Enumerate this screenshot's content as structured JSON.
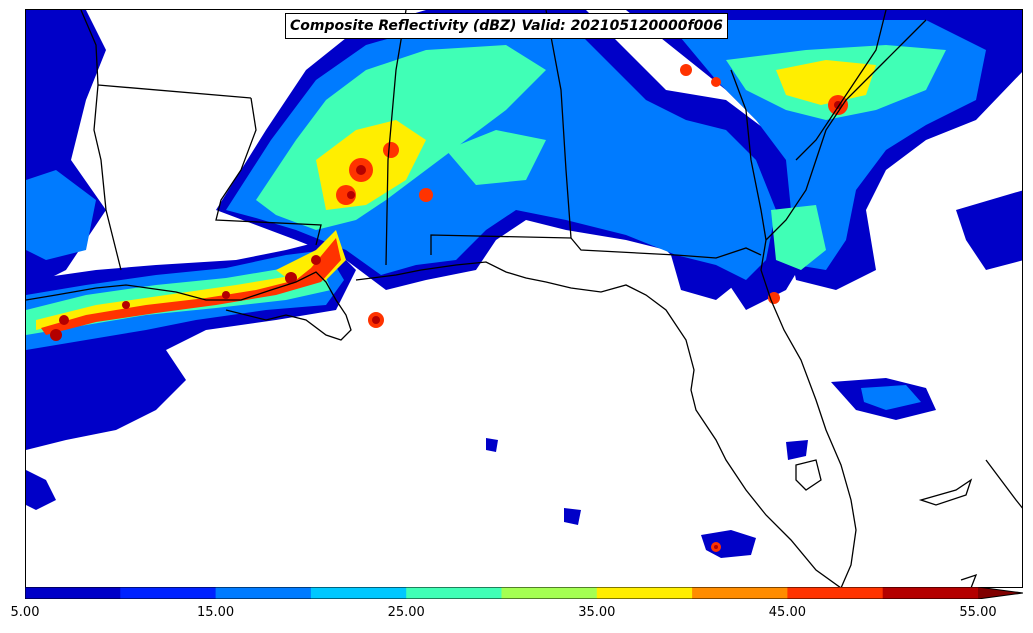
{
  "title": "Composite Reflectivity (dBZ) Valid: 202105120000f006",
  "colorbar": {
    "bins": [
      {
        "min": 5,
        "max": 10,
        "color": "#0000c8"
      },
      {
        "min": 10,
        "max": 15,
        "color": "#0022ff"
      },
      {
        "min": 15,
        "max": 20,
        "color": "#007bff"
      },
      {
        "min": 20,
        "max": 25,
        "color": "#00c8ff"
      },
      {
        "min": 25,
        "max": 30,
        "color": "#40ffb6"
      },
      {
        "min": 30,
        "max": 35,
        "color": "#a4ff52"
      },
      {
        "min": 35,
        "max": 40,
        "color": "#ffee00"
      },
      {
        "min": 40,
        "max": 45,
        "color": "#ff8c00"
      },
      {
        "min": 45,
        "max": 50,
        "color": "#ff3300"
      },
      {
        "min": 50,
        "max": 55,
        "color": "#b40000"
      }
    ],
    "extend_color": "#800000",
    "ticks": [
      "5.00",
      "15.00",
      "25.00",
      "35.00",
      "45.00",
      "55.00"
    ]
  }
}
